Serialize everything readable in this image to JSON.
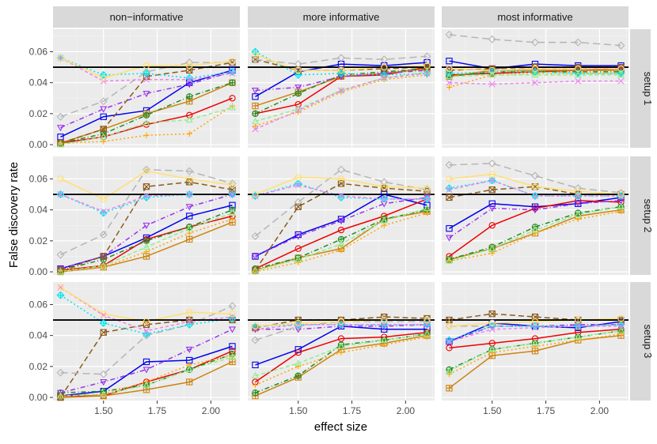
{
  "chart_data": {
    "type": "line",
    "ylabel": "False discovery rate",
    "xlabel": "effect size",
    "col_labels": [
      "non−informative",
      "more informative",
      "most informative"
    ],
    "row_labels": [
      "setup 1",
      "setup 2",
      "setup 3"
    ],
    "x": [
      1.3,
      1.5,
      1.7,
      1.9,
      2.1
    ],
    "x_ticks": [
      1.5,
      1.75,
      2.0
    ],
    "x_tick_labels": [
      "1.50",
      "1.75",
      "2.00"
    ],
    "xlim": [
      1.265,
      2.135
    ],
    "ylim": [
      -0.002,
      0.0745
    ],
    "y_ticks": [
      0.0,
      0.02,
      0.04,
      0.06
    ],
    "y_tick_labels": [
      "0.00",
      "0.02",
      "0.04",
      "0.06"
    ],
    "reference_line": 0.05,
    "series_styles": [
      {
        "name": "s1",
        "color": "#0000ee",
        "dash": "",
        "marker": "square"
      },
      {
        "name": "s2",
        "color": "#ee0000",
        "dash": "",
        "marker": "circle"
      },
      {
        "name": "s3",
        "color": "#cc8410",
        "dash": "",
        "marker": "square-cross"
      },
      {
        "name": "s4",
        "color": "#228b22",
        "dash": "6,3,1,3",
        "marker": "circle-plus"
      },
      {
        "name": "s5",
        "color": "#9a32ec",
        "dash": "6,3,1,3",
        "marker": "triangle-down"
      },
      {
        "name": "s6",
        "color": "#8b5a1a",
        "dash": "7,4",
        "marker": "square-x"
      },
      {
        "name": "s7",
        "color": "#b5b5b5",
        "dash": "9,5",
        "marker": "diamond"
      },
      {
        "name": "s8",
        "color": "#ffa500",
        "dash": "2,3",
        "marker": "plus"
      },
      {
        "name": "s9",
        "color": "#00e5ee",
        "dash": "2,3",
        "marker": "diamond-plus"
      },
      {
        "name": "s10",
        "color": "#90ee90",
        "dash": "5,3",
        "marker": "triangle"
      },
      {
        "name": "s11",
        "color": "#ee82ee",
        "dash": "4,3",
        "marker": "x"
      },
      {
        "name": "s12",
        "color": "#ffe070",
        "dash": "",
        "marker": "circle"
      }
    ],
    "panels": [
      {
        "row": 0,
        "col": 0,
        "series": [
          [
            0.005,
            0.018,
            0.022,
            0.04,
            0.048
          ],
          [
            0.001,
            0.005,
            0.013,
            0.019,
            0.03
          ],
          [
            0.001,
            0.01,
            0.02,
            0.028,
            0.04
          ],
          [
            0.001,
            0.007,
            0.019,
            0.031,
            0.04
          ],
          [
            0.011,
            0.023,
            0.033,
            0.039,
            0.047
          ],
          [
            0.001,
            0.01,
            0.044,
            0.048,
            0.053
          ],
          [
            0.018,
            0.028,
            0.047,
            0.053,
            0.053
          ],
          [
            0.001,
            0.002,
            0.006,
            0.007,
            0.025
          ],
          [
            0.056,
            0.045,
            0.046,
            0.043,
            0.047
          ],
          [
            0.0,
            0.005,
            0.014,
            0.016,
            0.024
          ],
          [
            0.056,
            0.041,
            0.042,
            0.042,
            0.046
          ],
          [
            0.056,
            0.043,
            0.051,
            0.051,
            0.054
          ]
        ]
      },
      {
        "row": 0,
        "col": 1,
        "series": [
          [
            0.031,
            0.047,
            0.052,
            0.051,
            0.053
          ],
          [
            0.02,
            0.026,
            0.044,
            0.045,
            0.05
          ],
          [
            0.025,
            0.034,
            0.044,
            0.046,
            0.049
          ],
          [
            0.02,
            0.033,
            0.045,
            0.047,
            0.049
          ],
          [
            0.035,
            0.037,
            0.044,
            0.046,
            0.048
          ],
          [
            0.055,
            0.048,
            0.048,
            0.049,
            0.05
          ],
          [
            0.055,
            0.052,
            0.056,
            0.055,
            0.057
          ],
          [
            0.012,
            0.021,
            0.034,
            0.042,
            0.045
          ],
          [
            0.06,
            0.045,
            0.046,
            0.045,
            0.046
          ],
          [
            0.015,
            0.023,
            0.035,
            0.043,
            0.047
          ],
          [
            0.01,
            0.022,
            0.035,
            0.043,
            0.046
          ],
          [
            0.058,
            0.048,
            0.048,
            0.05,
            0.051
          ]
        ]
      },
      {
        "row": 0,
        "col": 2,
        "series": [
          [
            0.054,
            0.049,
            0.052,
            0.051,
            0.051
          ],
          [
            0.045,
            0.046,
            0.047,
            0.048,
            0.049
          ],
          [
            0.044,
            0.048,
            0.048,
            0.048,
            0.048
          ],
          [
            0.044,
            0.047,
            0.047,
            0.047,
            0.047
          ],
          [
            0.049,
            0.048,
            0.049,
            0.049,
            0.05
          ],
          [
            0.048,
            0.049,
            0.05,
            0.05,
            0.05
          ],
          [
            0.071,
            0.068,
            0.066,
            0.066,
            0.064
          ],
          [
            0.037,
            0.045,
            0.046,
            0.046,
            0.046
          ],
          [
            0.046,
            0.047,
            0.047,
            0.046,
            0.046
          ],
          [
            0.044,
            0.045,
            0.045,
            0.045,
            0.045
          ],
          [
            0.04,
            0.039,
            0.04,
            0.041,
            0.041
          ],
          [
            0.049,
            0.048,
            0.049,
            0.049,
            0.049
          ]
        ]
      },
      {
        "row": 1,
        "col": 0,
        "series": [
          [
            0.002,
            0.01,
            0.022,
            0.036,
            0.043
          ],
          [
            0.001,
            0.004,
            0.021,
            0.029,
            0.036
          ],
          [
            0.0,
            0.003,
            0.01,
            0.021,
            0.032
          ],
          [
            0.001,
            0.008,
            0.02,
            0.029,
            0.04
          ],
          [
            0.002,
            0.01,
            0.03,
            0.042,
            0.05
          ],
          [
            0.001,
            0.01,
            0.055,
            0.058,
            0.053
          ],
          [
            0.011,
            0.024,
            0.066,
            0.065,
            0.057
          ],
          [
            0.001,
            0.003,
            0.013,
            0.025,
            0.034
          ],
          [
            0.05,
            0.038,
            0.048,
            0.05,
            0.05
          ],
          [
            0.0,
            0.004,
            0.016,
            0.028,
            0.038
          ],
          [
            0.05,
            0.039,
            0.049,
            0.05,
            0.05
          ],
          [
            0.06,
            0.047,
            0.065,
            0.06,
            0.056
          ]
        ]
      },
      {
        "row": 1,
        "col": 1,
        "series": [
          [
            0.01,
            0.024,
            0.034,
            0.05,
            0.043
          ],
          [
            0.002,
            0.015,
            0.027,
            0.036,
            0.047
          ],
          [
            0.001,
            0.009,
            0.015,
            0.034,
            0.039
          ],
          [
            0.002,
            0.009,
            0.021,
            0.034,
            0.04
          ],
          [
            0.01,
            0.023,
            0.033,
            0.044,
            0.048
          ],
          [
            0.001,
            0.042,
            0.057,
            0.054,
            0.052
          ],
          [
            0.023,
            0.045,
            0.066,
            0.058,
            0.053
          ],
          [
            0.0,
            0.006,
            0.014,
            0.03,
            0.038
          ],
          [
            0.049,
            0.057,
            0.048,
            0.047,
            0.047
          ],
          [
            0.001,
            0.008,
            0.018,
            0.033,
            0.041
          ],
          [
            0.049,
            0.056,
            0.049,
            0.047,
            0.047
          ],
          [
            0.05,
            0.061,
            0.06,
            0.055,
            0.054
          ]
        ]
      },
      {
        "row": 1,
        "col": 2,
        "series": [
          [
            0.028,
            0.044,
            0.042,
            0.044,
            0.048
          ],
          [
            0.01,
            0.03,
            0.041,
            0.046,
            0.045
          ],
          [
            0.008,
            0.015,
            0.025,
            0.036,
            0.04
          ],
          [
            0.008,
            0.016,
            0.029,
            0.038,
            0.042
          ],
          [
            0.022,
            0.041,
            0.04,
            0.044,
            0.046
          ],
          [
            0.048,
            0.053,
            0.055,
            0.05,
            0.05
          ],
          [
            0.069,
            0.07,
            0.062,
            0.054,
            0.051
          ],
          [
            0.007,
            0.012,
            0.025,
            0.034,
            0.039
          ],
          [
            0.054,
            0.059,
            0.049,
            0.049,
            0.049
          ],
          [
            0.007,
            0.015,
            0.027,
            0.037,
            0.042
          ],
          [
            0.053,
            0.059,
            0.049,
            0.049,
            0.049
          ],
          [
            0.06,
            0.063,
            0.055,
            0.052,
            0.05
          ]
        ]
      },
      {
        "row": 2,
        "col": 0,
        "series": [
          [
            0.001,
            0.004,
            0.023,
            0.024,
            0.033
          ],
          [
            0.001,
            0.001,
            0.01,
            0.018,
            0.03
          ],
          [
            0.0,
            0.001,
            0.005,
            0.01,
            0.023
          ],
          [
            0.003,
            0.004,
            0.008,
            0.018,
            0.028
          ],
          [
            0.003,
            0.01,
            0.018,
            0.031,
            0.044
          ],
          [
            0.0,
            0.042,
            0.047,
            0.05,
            0.05
          ],
          [
            0.016,
            0.015,
            0.04,
            0.047,
            0.059
          ],
          [
            0.001,
            0.002,
            0.01,
            0.021,
            0.027
          ],
          [
            0.066,
            0.048,
            0.041,
            0.047,
            0.051
          ],
          [
            0.001,
            0.002,
            0.008,
            0.018,
            0.026
          ],
          [
            0.071,
            0.053,
            0.043,
            0.049,
            0.052
          ],
          [
            0.071,
            0.054,
            0.049,
            0.055,
            0.054
          ]
        ]
      },
      {
        "row": 2,
        "col": 1,
        "series": [
          [
            0.021,
            0.031,
            0.046,
            0.044,
            0.044
          ],
          [
            0.01,
            0.029,
            0.038,
            0.039,
            0.042
          ],
          [
            0.001,
            0.013,
            0.031,
            0.035,
            0.04
          ],
          [
            0.003,
            0.014,
            0.034,
            0.037,
            0.041
          ],
          [
            0.044,
            0.044,
            0.046,
            0.046,
            0.047
          ],
          [
            0.045,
            0.05,
            0.05,
            0.052,
            0.051
          ],
          [
            0.037,
            0.046,
            0.049,
            0.049,
            0.049
          ],
          [
            0.008,
            0.02,
            0.029,
            0.034,
            0.039
          ],
          [
            0.046,
            0.047,
            0.047,
            0.047,
            0.047
          ],
          [
            0.014,
            0.022,
            0.033,
            0.037,
            0.041
          ],
          [
            0.044,
            0.047,
            0.047,
            0.047,
            0.047
          ],
          [
            0.046,
            0.048,
            0.049,
            0.05,
            0.05
          ]
        ]
      },
      {
        "row": 2,
        "col": 2,
        "series": [
          [
            0.036,
            0.048,
            0.046,
            0.045,
            0.049
          ],
          [
            0.032,
            0.035,
            0.038,
            0.042,
            0.044
          ],
          [
            0.006,
            0.027,
            0.03,
            0.037,
            0.04
          ],
          [
            0.018,
            0.031,
            0.035,
            0.039,
            0.043
          ],
          [
            0.036,
            0.046,
            0.046,
            0.047,
            0.047
          ],
          [
            0.05,
            0.054,
            0.052,
            0.05,
            0.05
          ],
          [
            0.046,
            0.046,
            0.046,
            0.046,
            0.047
          ],
          [
            0.015,
            0.029,
            0.033,
            0.037,
            0.041
          ],
          [
            0.037,
            0.046,
            0.046,
            0.046,
            0.047
          ],
          [
            0.017,
            0.031,
            0.035,
            0.039,
            0.043
          ],
          [
            0.036,
            0.044,
            0.045,
            0.046,
            0.046
          ],
          [
            0.046,
            0.048,
            0.049,
            0.05,
            0.051
          ]
        ]
      }
    ]
  }
}
